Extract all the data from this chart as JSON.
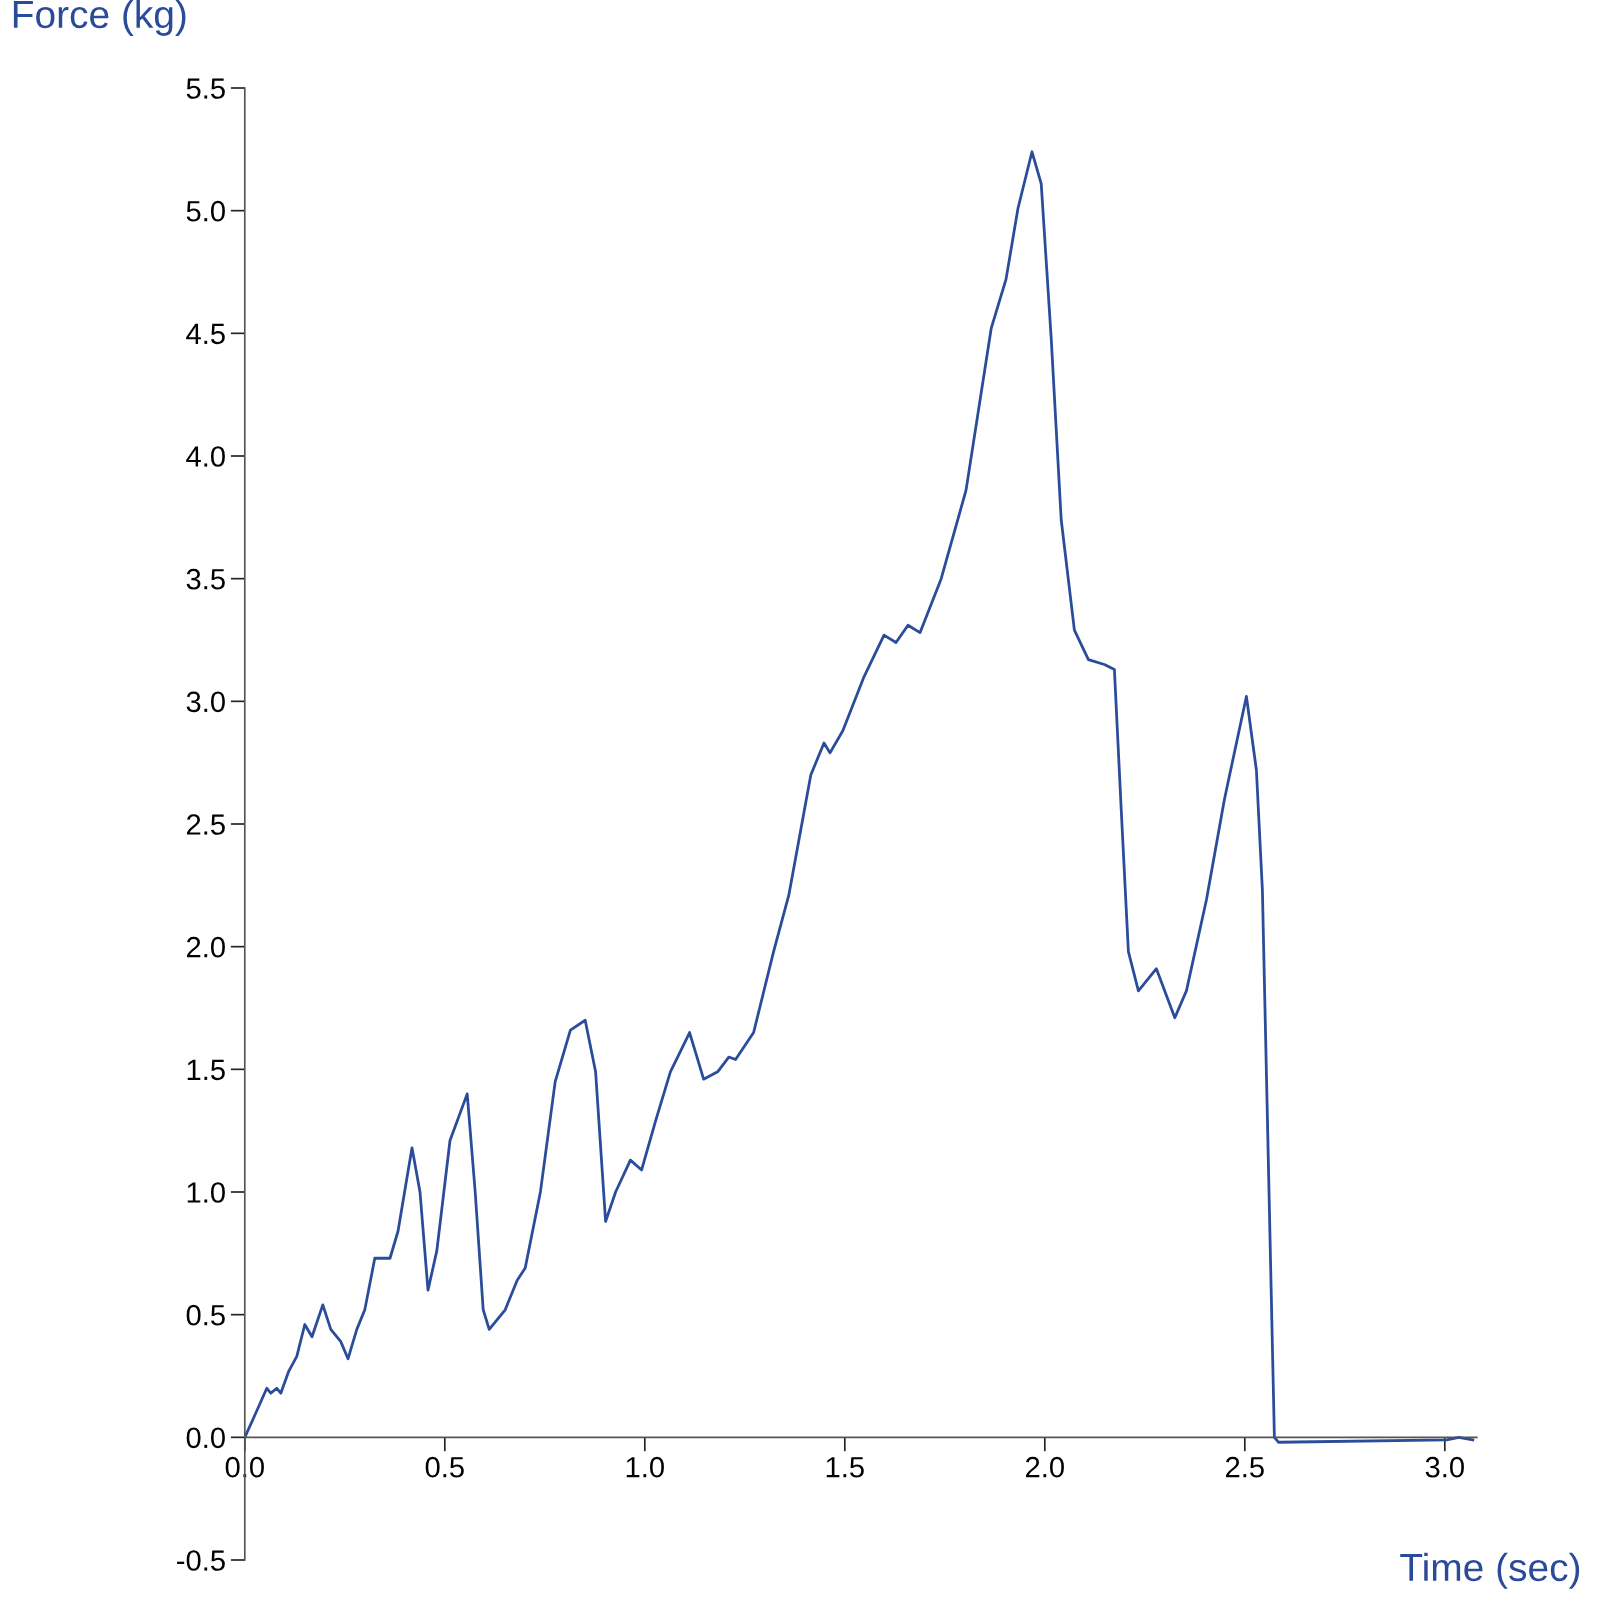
{
  "chart_data": {
    "type": "line",
    "xlabel": "Time (sec)",
    "ylabel": "Force (kg)",
    "x": [
      0,
      0.025,
      0.055,
      0.065,
      0.08,
      0.09,
      0.11,
      0.13,
      0.15,
      0.168,
      0.195,
      0.215,
      0.24,
      0.258,
      0.28,
      0.3,
      0.325,
      0.363,
      0.383,
      0.418,
      0.438,
      0.458,
      0.48,
      0.513,
      0.556,
      0.576,
      0.596,
      0.611,
      0.651,
      0.681,
      0.701,
      0.739,
      0.776,
      0.814,
      0.851,
      0.877,
      0.902,
      0.927,
      0.964,
      0.992,
      1.027,
      1.064,
      1.112,
      1.147,
      1.182,
      1.21,
      1.227,
      1.272,
      1.322,
      1.36,
      1.415,
      1.448,
      1.463,
      1.495,
      1.548,
      1.598,
      1.628,
      1.658,
      1.688,
      1.741,
      1.803,
      1.866,
      1.903,
      1.933,
      1.968,
      1.991,
      2.016,
      2.041,
      2.074,
      2.109,
      2.149,
      2.174,
      2.191,
      2.209,
      2.234,
      2.279,
      2.325,
      2.354,
      2.404,
      2.449,
      2.504,
      2.529,
      2.544,
      2.574,
      2.584,
      3.005,
      3.035,
      3.07
    ],
    "series": [
      {
        "color": "#2b4c9a",
        "values": [
          0,
          0.09,
          0.2,
          0.18,
          0.2,
          0.18,
          0.27,
          0.33,
          0.46,
          0.41,
          0.54,
          0.44,
          0.39,
          0.32,
          0.44,
          0.52,
          0.73,
          0.73,
          0.84,
          1.18,
          1.0,
          0.6,
          0.76,
          1.21,
          1.4,
          1.0,
          0.52,
          0.44,
          0.52,
          0.64,
          0.69,
          1.0,
          1.45,
          1.66,
          1.7,
          1.49,
          0.88,
          1.0,
          1.13,
          1.09,
          1.29,
          1.49,
          1.65,
          1.46,
          1.49,
          1.55,
          1.54,
          1.65,
          1.98,
          2.21,
          2.7,
          2.83,
          2.79,
          2.88,
          3.1,
          3.27,
          3.24,
          3.31,
          3.28,
          3.5,
          3.86,
          4.52,
          4.72,
          5.01,
          5.24,
          5.11,
          4.48,
          3.74,
          3.29,
          3.17,
          3.15,
          3.13,
          2.56,
          1.98,
          1.82,
          1.91,
          1.71,
          1.82,
          2.19,
          2.6,
          3.02,
          2.72,
          2.23,
          0.0,
          -0.02,
          -0.01,
          0,
          -0.01
        ]
      }
    ],
    "xlim": [
      0,
      3.08
    ],
    "ylim": [
      -0.5,
      5.5
    ],
    "xticks": [
      {
        "value": 0,
        "label": "0.0"
      },
      0.5,
      {
        "value": 1,
        "label": "1.0"
      },
      1.5,
      {
        "value": 2,
        "label": "2.0"
      },
      2.5,
      {
        "value": 3,
        "label": "3.0"
      }
    ],
    "yticks": [
      -0.5,
      {
        "value": 0,
        "label": "0.0"
      },
      0.5,
      {
        "value": 1,
        "label": "1.0"
      },
      1.5,
      {
        "value": 2,
        "label": "2.0"
      },
      2.5,
      {
        "value": 3,
        "label": "3.0"
      },
      3.5,
      {
        "value": 4,
        "label": "4.0"
      },
      4.5,
      {
        "value": 5,
        "label": "5.0"
      },
      5.5
    ],
    "grid": false,
    "legend": false,
    "marker": "none",
    "line_style": "solid"
  }
}
